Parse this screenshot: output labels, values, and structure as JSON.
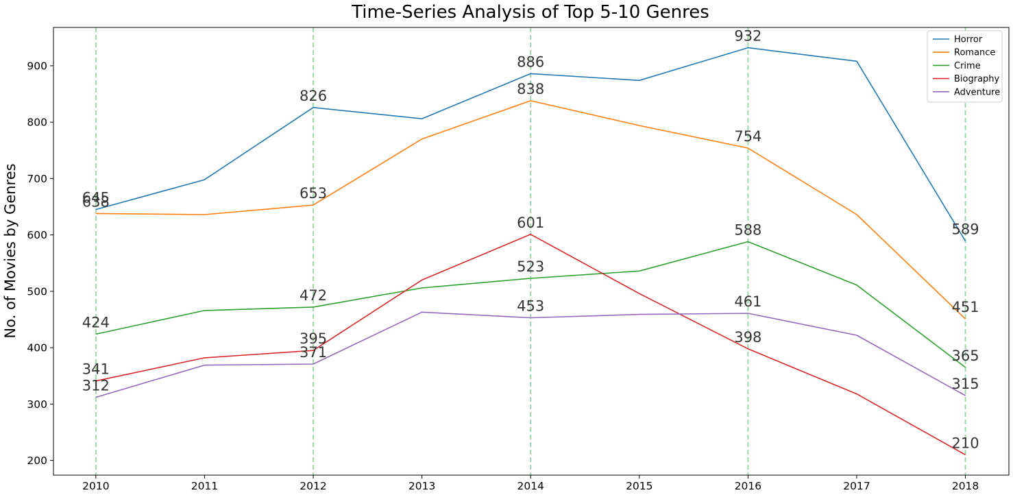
{
  "chart_data": {
    "type": "line",
    "title": "Time-Series Analysis of Top 5-10 Genres",
    "xlabel": "",
    "ylabel": "No. of Movies by Genres",
    "x": [
      2010,
      2011,
      2012,
      2013,
      2014,
      2015,
      2016,
      2017,
      2018
    ],
    "xlim": [
      2009.61,
      2018.4
    ],
    "ylim": [
      174,
      968
    ],
    "yticks": [
      200,
      300,
      400,
      500,
      600,
      700,
      800,
      900
    ],
    "grid": "vertical dashed at labeled years",
    "grid_x": [
      2010,
      2012,
      2014,
      2016,
      2018
    ],
    "grid_color": "#9fd8a8",
    "label_years": [
      2010,
      2012,
      2014,
      2016,
      2018
    ],
    "legend_position": "top-right",
    "series": [
      {
        "name": "Horror",
        "color": "#1f77b4",
        "values": [
          645,
          698,
          826,
          806,
          886,
          874,
          932,
          908,
          589
        ]
      },
      {
        "name": "Romance",
        "color": "#ff7f0e",
        "values": [
          638,
          636,
          653,
          770,
          838,
          794,
          754,
          636,
          451
        ]
      },
      {
        "name": "Crime",
        "color": "#2ca02c",
        "values": [
          424,
          466,
          472,
          506,
          523,
          536,
          588,
          511,
          365
        ]
      },
      {
        "name": "Biography",
        "color": "#d62728",
        "values": [
          341,
          382,
          395,
          520,
          601,
          496,
          398,
          318,
          210
        ]
      },
      {
        "name": "Adventure",
        "color": "#9467bd",
        "values": [
          312,
          369,
          371,
          463,
          453,
          459,
          461,
          422,
          315
        ]
      }
    ]
  }
}
